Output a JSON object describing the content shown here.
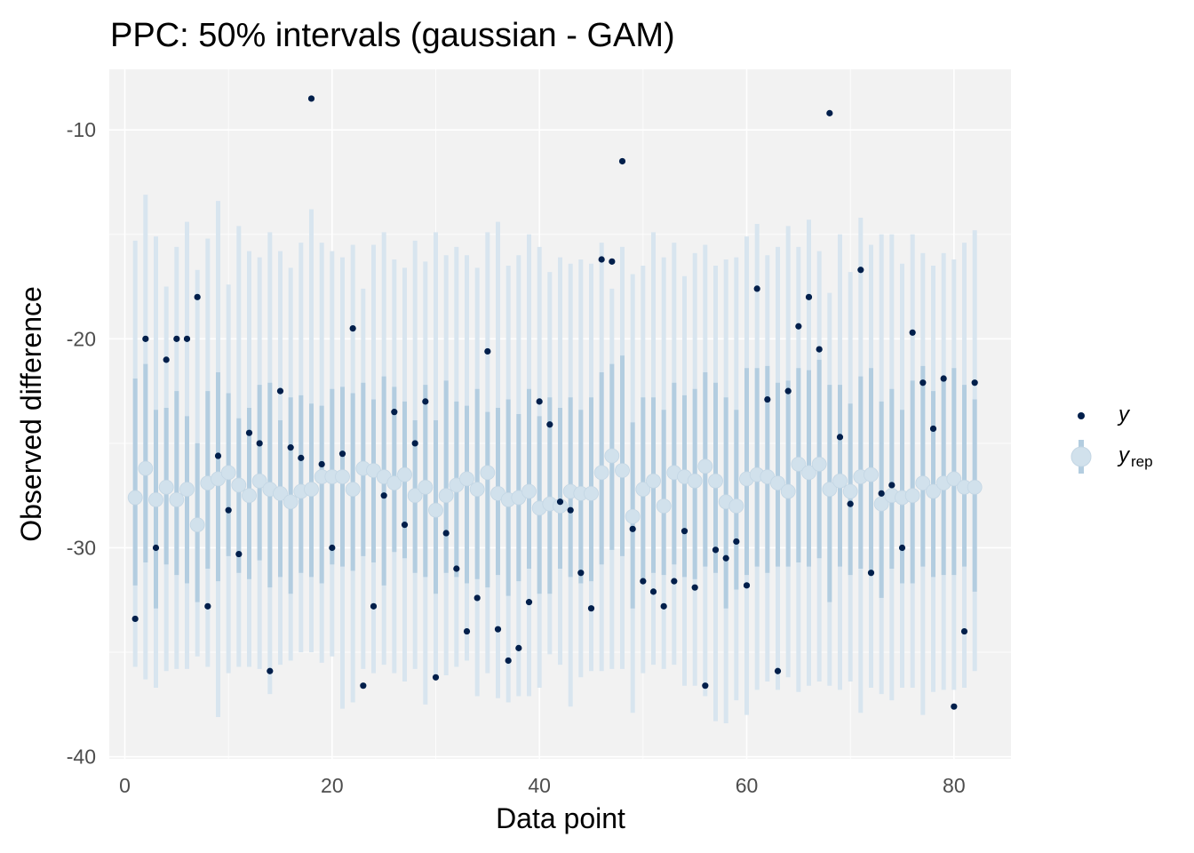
{
  "chart_data": {
    "type": "scatter",
    "title": "PPC: 50% intervals (gaussian - GAM)",
    "xlabel": "Data point",
    "ylabel": "Observed difference",
    "xlim": [
      -1.5,
      85.5
    ],
    "ylim": [
      -40.1,
      -7.1
    ],
    "x_ticks": [
      0,
      20,
      40,
      60,
      80
    ],
    "x_tick_labels": [
      "0",
      "20",
      "40",
      "60",
      "80"
    ],
    "y_ticks": [
      -40,
      -30,
      -20,
      -10
    ],
    "y_tick_labels": [
      "-40",
      "-30",
      "-20",
      "-10"
    ],
    "grid": true,
    "legend_position": "right",
    "legend": [
      {
        "key": "y",
        "label": "y",
        "subscript": ""
      },
      {
        "key": "yrep",
        "label": "y",
        "subscript": "rep"
      }
    ],
    "colors": {
      "y_point": "#011f4b",
      "yrep_point": "#d1e1ec",
      "inner_interval": "#b3cde0",
      "outer_interval": "#d8e5ef",
      "panel_background": "#f2f2f2",
      "gridline": "#ffffff"
    },
    "x": [
      1,
      2,
      3,
      4,
      5,
      6,
      7,
      8,
      9,
      10,
      11,
      12,
      13,
      14,
      15,
      16,
      17,
      18,
      19,
      20,
      21,
      22,
      23,
      24,
      25,
      26,
      27,
      28,
      29,
      30,
      31,
      32,
      33,
      34,
      35,
      36,
      37,
      38,
      39,
      40,
      41,
      42,
      43,
      44,
      45,
      46,
      47,
      48,
      49,
      50,
      51,
      52,
      53,
      54,
      55,
      56,
      57,
      58,
      59,
      60,
      61,
      62,
      63,
      64,
      65,
      66,
      67,
      68,
      69,
      70,
      71,
      72,
      73,
      74,
      75,
      76,
      77,
      78,
      79,
      80,
      81,
      82
    ],
    "series": [
      {
        "name": "y",
        "values": [
          -33.4,
          -20.0,
          -30.0,
          -21.0,
          -20.0,
          -20.0,
          -18.0,
          -32.8,
          -25.6,
          -28.2,
          -30.3,
          -24.5,
          -25.0,
          -35.9,
          -22.5,
          -25.2,
          -25.7,
          -8.5,
          -26.0,
          -30.0,
          -25.5,
          -19.5,
          -36.6,
          -32.8,
          -27.5,
          -23.5,
          -28.9,
          -25.0,
          -23.0,
          -36.2,
          -29.3,
          -31.0,
          -34.0,
          -32.4,
          -20.6,
          -33.9,
          -35.4,
          -34.8,
          -32.6,
          -23.0,
          -24.1,
          -27.8,
          -28.2,
          -31.2,
          -32.9,
          -16.2,
          -16.3,
          -11.5,
          -29.1,
          -31.6,
          -32.1,
          -32.8,
          -31.6,
          -29.2,
          -31.9,
          -36.6,
          -30.1,
          -30.5,
          -29.7,
          -31.8,
          -17.6,
          -22.9,
          -35.9,
          -22.5,
          -19.4,
          -18.0,
          -20.5,
          -9.2,
          -24.7,
          -27.9,
          -16.7,
          -31.2,
          -27.4,
          -27.0,
          -30.0,
          -19.7,
          -22.1,
          -24.3,
          -21.9,
          -37.6,
          -34.0,
          -22.1
        ]
      },
      {
        "name": "yrep",
        "median": [
          -27.6,
          -26.2,
          -27.7,
          -27.1,
          -27.7,
          -27.2,
          -28.9,
          -26.9,
          -26.7,
          -26.4,
          -27.0,
          -27.5,
          -26.8,
          -27.2,
          -27.4,
          -27.8,
          -27.3,
          -27.2,
          -26.6,
          -26.6,
          -26.6,
          -27.2,
          -26.2,
          -26.3,
          -26.6,
          -26.9,
          -26.5,
          -27.5,
          -27.1,
          -28.2,
          -27.5,
          -27.0,
          -26.7,
          -27.2,
          -26.4,
          -27.4,
          -27.7,
          -27.6,
          -27.3,
          -28.1,
          -27.9,
          -28.0,
          -27.3,
          -27.4,
          -27.4,
          -26.4,
          -25.6,
          -26.3,
          -28.5,
          -27.2,
          -26.8,
          -28.0,
          -26.4,
          -26.6,
          -26.8,
          -26.1,
          -26.8,
          -27.8,
          -28.0,
          -26.7,
          -26.5,
          -26.6,
          -26.9,
          -27.3,
          -26.0,
          -26.4,
          -26.0,
          -27.2,
          -26.8,
          -27.3,
          -26.6,
          -26.5,
          -27.9,
          -27.5,
          -27.6,
          -27.5,
          -26.9,
          -27.3,
          -26.9,
          -26.7,
          -27.1,
          -27.1
        ],
        "inner_low": [
          -31.8,
          -30.7,
          -32.9,
          -30.8,
          -31.3,
          -31.7,
          -32.6,
          -31.0,
          -31.6,
          -30.4,
          -31.2,
          -31.5,
          -30.6,
          -31.9,
          -31.4,
          -32.2,
          -31.2,
          -31.4,
          -31.7,
          -30.8,
          -30.9,
          -31.1,
          -30.4,
          -30.7,
          -31.8,
          -30.2,
          -30.5,
          -31.2,
          -31.4,
          -32.2,
          -31.2,
          -31.4,
          -31.7,
          -31.5,
          -31.9,
          -31.3,
          -32.3,
          -31.6,
          -31.0,
          -32.2,
          -32.2,
          -31.0,
          -31.4,
          -31.7,
          -31.6,
          -30.8,
          -30.1,
          -30.4,
          -32.9,
          -31.7,
          -31.2,
          -31.3,
          -30.8,
          -31.4,
          -31.5,
          -30.9,
          -31.2,
          -32.9,
          -32.0,
          -31.3,
          -30.9,
          -31.2,
          -30.9,
          -30.9,
          -30.7,
          -30.9,
          -30.5,
          -32.6,
          -30.9,
          -31.3,
          -31.0,
          -31.1,
          -32.4,
          -31.0,
          -31.7,
          -31.7,
          -30.9,
          -31.4,
          -31.3,
          -31.3,
          -30.9,
          -32.1
        ],
        "inner_high": [
          -21.9,
          -21.2,
          -23.4,
          -23.3,
          -22.5,
          -23.7,
          -25.0,
          -22.5,
          -21.6,
          -22.6,
          -23.8,
          -23.3,
          -22.2,
          -22.1,
          -23.9,
          -22.8,
          -22.7,
          -23.1,
          -23.2,
          -22.4,
          -22.3,
          -22.6,
          -22.1,
          -22.9,
          -21.8,
          -22.3,
          -23.0,
          -23.9,
          -22.2,
          -23.9,
          -22.0,
          -23.0,
          -23.2,
          -22.4,
          -23.5,
          -23.3,
          -22.9,
          -23.6,
          -22.4,
          -23.7,
          -22.8,
          -23.3,
          -22.8,
          -23.4,
          -22.8,
          -21.6,
          -21.2,
          -20.8,
          -24.0,
          -22.8,
          -22.8,
          -23.4,
          -22.1,
          -22.7,
          -22.4,
          -21.6,
          -22.1,
          -22.8,
          -23.4,
          -21.4,
          -21.4,
          -21.3,
          -22.1,
          -22.0,
          -21.4,
          -21.5,
          -21.0,
          -22.2,
          -22.2,
          -23.1,
          -21.8,
          -21.4,
          -23.0,
          -22.4,
          -23.4,
          -22.0,
          -21.3,
          -22.5,
          -21.9,
          -21.4,
          -22.2,
          -22.9
        ],
        "outer_low": [
          -35.7,
          -36.3,
          -36.7,
          -35.9,
          -35.8,
          -35.8,
          -35.2,
          -35.7,
          -38.1,
          -36.0,
          -35.7,
          -35.7,
          -35.8,
          -37.0,
          -35.6,
          -35.4,
          -35.0,
          -35.0,
          -35.5,
          -35.2,
          -37.7,
          -37.4,
          -35.8,
          -36.0,
          -35.6,
          -36.0,
          -36.4,
          -35.8,
          -37.5,
          -36.2,
          -36.1,
          -35.7,
          -35.4,
          -37.1,
          -36.0,
          -37.2,
          -37.4,
          -37.1,
          -37.1,
          -36.7,
          -35.1,
          -35.6,
          -37.6,
          -36.2,
          -35.9,
          -35.9,
          -35.8,
          -35.8,
          -37.9,
          -36.0,
          -35.6,
          -35.8,
          -35.6,
          -36.6,
          -36.6,
          -37.1,
          -38.3,
          -38.4,
          -37.3,
          -38.0,
          -36.8,
          -36.4,
          -36.8,
          -36.2,
          -36.9,
          -36.6,
          -36.4,
          -36.6,
          -36.8,
          -36.4,
          -37.9,
          -36.7,
          -37.0,
          -37.3,
          -36.7,
          -36.7,
          -38.0,
          -36.9,
          -36.8,
          -36.8,
          -36.7,
          -35.9
        ],
        "outer_high": [
          -15.3,
          -13.1,
          -15.1,
          -17.5,
          -15.6,
          -14.4,
          -16.7,
          -15.2,
          -13.4,
          -17.4,
          -14.6,
          -15.8,
          -16.1,
          -14.9,
          -15.8,
          -16.6,
          -15.4,
          -13.8,
          -15.4,
          -15.8,
          -16.1,
          -15.5,
          -17.6,
          -15.5,
          -14.9,
          -16.2,
          -16.6,
          -15.3,
          -16.3,
          -14.9,
          -16.0,
          -15.6,
          -16.0,
          -16.6,
          -14.9,
          -14.4,
          -16.5,
          -16.0,
          -15.0,
          -15.6,
          -16.8,
          -16.1,
          -16.4,
          -16.2,
          -16.4,
          -15.4,
          -17.6,
          -15.6,
          -16.9,
          -16.5,
          -14.9,
          -16.1,
          -15.4,
          -17.0,
          -15.9,
          -15.5,
          -16.5,
          -16.2,
          -16.1,
          -15.1,
          -14.5,
          -16.0,
          -15.6,
          -14.6,
          -15.6,
          -14.3,
          -15.8,
          -17.8,
          -15.0,
          -16.8,
          -14.2,
          -15.5,
          -15.0,
          -15.0,
          -16.4,
          -15.0,
          -15.9,
          -16.5,
          -15.9,
          -16.2,
          -15.4,
          -14.8
        ]
      }
    ]
  }
}
